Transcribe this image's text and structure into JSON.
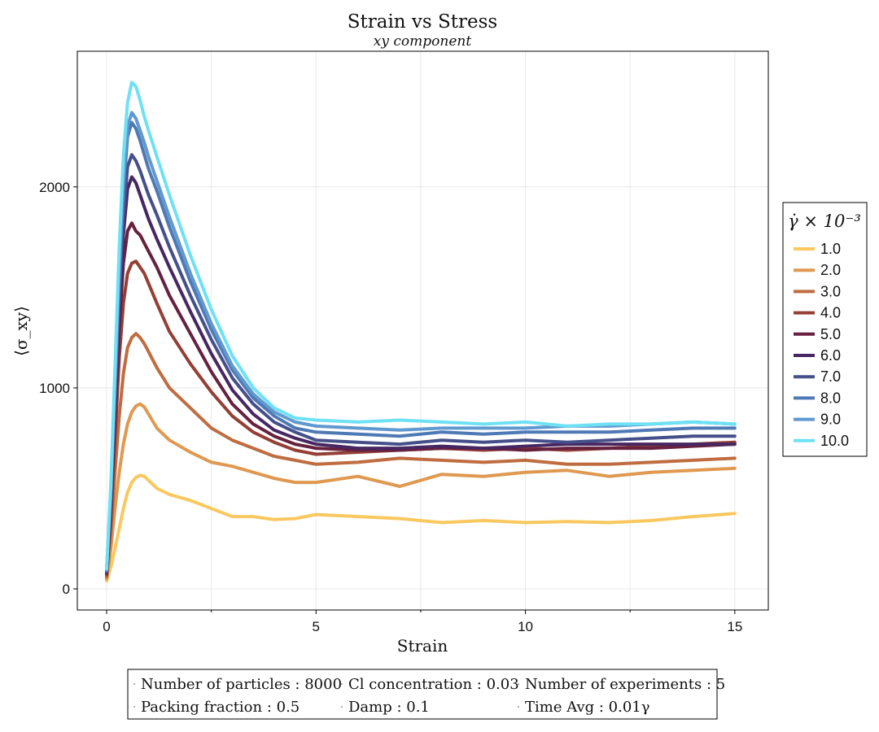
{
  "chart_data": {
    "type": "line",
    "title": "Strain vs Stress",
    "subtitle": "xy component",
    "xlabel": "Strain",
    "ylabel": "⟨σ_xy⟩",
    "xlim": [
      -0.7,
      15.8
    ],
    "ylim": [
      -105,
      2675
    ],
    "x_ticks": [
      0,
      5,
      10,
      15
    ],
    "x_minor_ticks": [
      2.5,
      7.5,
      12.5
    ],
    "y_ticks": [
      0,
      1000,
      2000
    ],
    "grid": true,
    "legend": {
      "title": "γ̇ × 10⁻³",
      "placement": "right"
    },
    "x": [
      0,
      0.1,
      0.2,
      0.3,
      0.4,
      0.5,
      0.6,
      0.7,
      0.8,
      0.9,
      1.0,
      1.2,
      1.5,
      2.0,
      2.5,
      3.0,
      3.5,
      4.0,
      4.5,
      5.0,
      6.0,
      7.0,
      8.0,
      9.0,
      10.0,
      11.0,
      12.0,
      13.0,
      14.0,
      15.0
    ],
    "series": [
      {
        "name": "1.0",
        "color": "#f9c85f",
        "values": [
          40,
          110,
          200,
          300,
          400,
          480,
          530,
          555,
          565,
          560,
          540,
          500,
          470,
          440,
          400,
          360,
          360,
          345,
          350,
          370,
          360,
          350,
          330,
          340,
          330,
          335,
          330,
          340,
          360,
          375
        ]
      },
      {
        "name": "2.0",
        "color": "#df9950",
        "values": [
          50,
          200,
          400,
          580,
          720,
          820,
          880,
          910,
          920,
          905,
          870,
          800,
          740,
          680,
          630,
          610,
          580,
          550,
          530,
          530,
          560,
          510,
          570,
          560,
          580,
          590,
          560,
          580,
          590,
          600
        ]
      },
      {
        "name": "3.0",
        "color": "#bf6d40",
        "values": [
          60,
          280,
          580,
          860,
          1070,
          1200,
          1250,
          1270,
          1250,
          1220,
          1180,
          1100,
          1000,
          900,
          800,
          740,
          700,
          660,
          640,
          620,
          630,
          650,
          640,
          630,
          640,
          620,
          620,
          630,
          640,
          650
        ]
      },
      {
        "name": "4.0",
        "color": "#943f35",
        "values": [
          70,
          350,
          750,
          1150,
          1420,
          1570,
          1620,
          1630,
          1600,
          1570,
          1520,
          1420,
          1280,
          1120,
          980,
          860,
          780,
          730,
          690,
          670,
          680,
          690,
          700,
          690,
          700,
          690,
          700,
          710,
          720,
          730
        ]
      },
      {
        "name": "5.0",
        "color": "#66213f",
        "values": [
          80,
          400,
          850,
          1300,
          1620,
          1780,
          1820,
          1780,
          1760,
          1720,
          1680,
          1600,
          1460,
          1270,
          1080,
          920,
          820,
          760,
          720,
          700,
          690,
          690,
          700,
          700,
          690,
          700,
          700,
          700,
          710,
          720
        ]
      },
      {
        "name": "6.0",
        "color": "#472661",
        "values": [
          80,
          420,
          900,
          1380,
          1760,
          1990,
          2050,
          2020,
          1960,
          1900,
          1840,
          1740,
          1600,
          1380,
          1170,
          990,
          870,
          790,
          750,
          720,
          700,
          700,
          710,
          700,
          710,
          720,
          720,
          720,
          720,
          720
        ]
      },
      {
        "name": "7.0",
        "color": "#454f8a",
        "values": [
          85,
          450,
          950,
          1450,
          1850,
          2100,
          2160,
          2130,
          2080,
          2020,
          1960,
          1860,
          1700,
          1460,
          1240,
          1050,
          920,
          830,
          780,
          740,
          730,
          720,
          740,
          730,
          740,
          730,
          740,
          750,
          760,
          760
        ]
      },
      {
        "name": "8.0",
        "color": "#4f79b5",
        "values": [
          90,
          480,
          1000,
          1550,
          1980,
          2250,
          2320,
          2290,
          2230,
          2160,
          2090,
          1980,
          1800,
          1530,
          1290,
          1090,
          950,
          860,
          800,
          780,
          770,
          760,
          780,
          770,
          780,
          780,
          780,
          790,
          800,
          800
        ]
      },
      {
        "name": "9.0",
        "color": "#6099cf",
        "values": [
          95,
          500,
          1050,
          1620,
          2050,
          2300,
          2370,
          2340,
          2280,
          2220,
          2150,
          2030,
          1850,
          1570,
          1320,
          1110,
          970,
          880,
          830,
          810,
          800,
          790,
          800,
          800,
          800,
          810,
          810,
          820,
          830,
          820
        ]
      },
      {
        "name": "10.0",
        "color": "#6ee1f4",
        "values": [
          100,
          520,
          1100,
          1700,
          2150,
          2420,
          2520,
          2500,
          2430,
          2350,
          2280,
          2150,
          1960,
          1660,
          1390,
          1160,
          1000,
          900,
          850,
          840,
          830,
          840,
          830,
          820,
          830,
          810,
          820,
          820,
          830,
          820
        ]
      }
    ]
  },
  "info_box": {
    "items": [
      {
        "text": "Number of particles : 8000"
      },
      {
        "text": "Cl concentration : 0.03"
      },
      {
        "text": "Number of experiments : 5"
      },
      {
        "text": "Packing fraction : 0.5"
      },
      {
        "text": "Damp : 0.1"
      },
      {
        "text": "Time Avg : 0.01γ"
      }
    ]
  }
}
